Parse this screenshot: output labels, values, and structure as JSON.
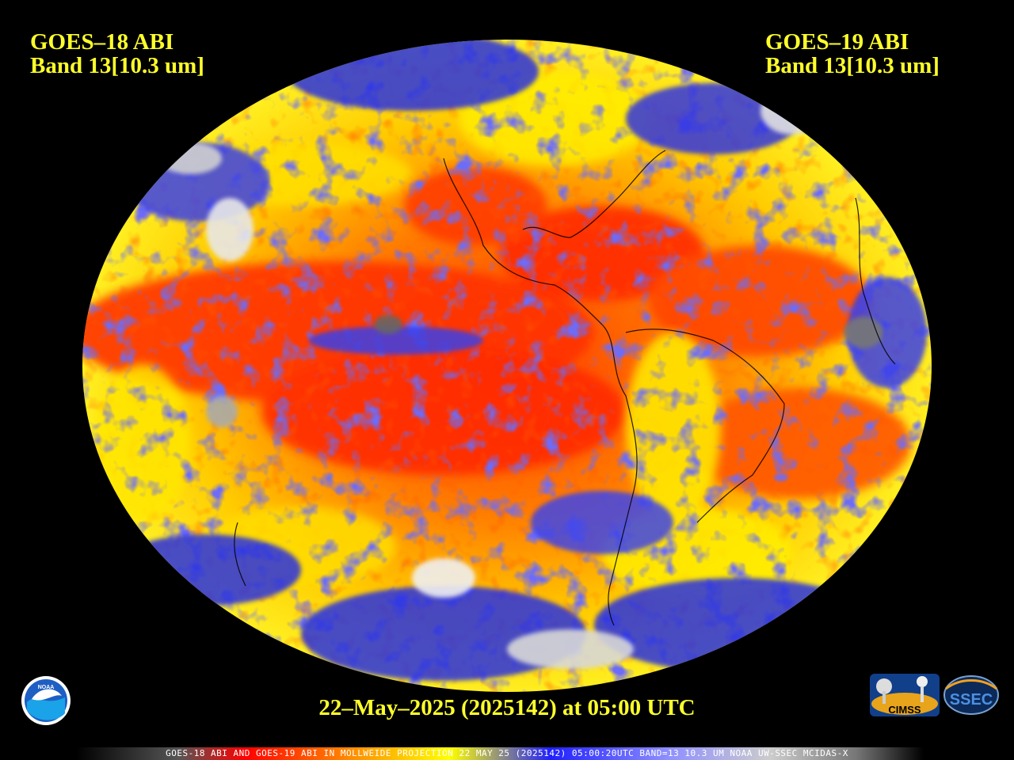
{
  "satellite_left": {
    "line1": "GOES–18 ABI",
    "line2": "Band 13[10.3 um]"
  },
  "satellite_right": {
    "line1": "GOES–19 ABI",
    "line2": "Band 13[10.3 um]"
  },
  "timestamp": "22–May–2025 (2025142) at 05:00 UTC",
  "footer": "GOES-18 ABI AND GOES-19 ABI IN MOLLWEIDE PROJECTION 22 MAY 25 (2025142) 05:00:20UTC BAND=13 10.3 UM NOAA UW-SSEC MCIDAS-X",
  "logos": {
    "noaa": "NOAA",
    "cimss": "CIMSS",
    "ssec": "SSEC"
  },
  "colors": {
    "text": "#ffff2a",
    "cold": "#ffffff",
    "cool": "#2a2ae0",
    "mid": "#ffee00",
    "warm": "#ff9a00",
    "hot": "#ff2a00"
  }
}
